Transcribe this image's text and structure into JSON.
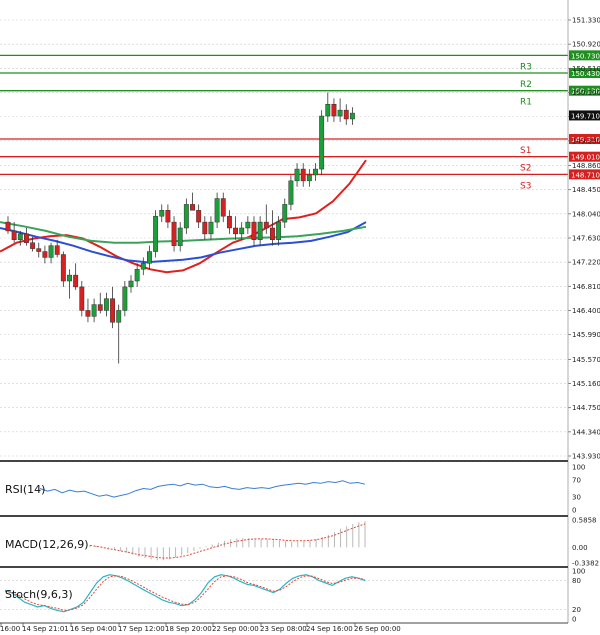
{
  "chart_data": {
    "type": "candlestick",
    "instrument_timeframe": "H4",
    "price_axis": {
      "ylim": [
        143.7,
        151.6
      ],
      "ticks": [
        "151.330",
        "150.920",
        "150.510",
        "150.100",
        "149.690",
        "149.280",
        "148.860",
        "148.450",
        "148.040",
        "147.630",
        "147.220",
        "146.810",
        "146.400",
        "145.990",
        "145.570",
        "145.160",
        "144.750",
        "144.340",
        "143.930"
      ]
    },
    "time_labels": [
      "16:00",
      "14 Sep 21:01",
      "16 Sep 04:00",
      "17 Sep 12:00",
      "18 Sep 20:00",
      "22 Sep 00:00",
      "23 Sep 08:00",
      "24 Sep 16:00",
      "26 Sep 00:00"
    ],
    "levels": [
      {
        "name": "R3",
        "value": 150.73,
        "label": "150.730",
        "type": "resistance"
      },
      {
        "name": "R2",
        "value": 150.43,
        "label": "150.430",
        "type": "resistance"
      },
      {
        "name": "R1",
        "value": 150.13,
        "label": "150.130",
        "type": "resistance"
      },
      {
        "name": "S1",
        "value": 149.31,
        "label": "149.310",
        "type": "support"
      },
      {
        "name": "S2",
        "value": 149.01,
        "label": "149.010",
        "type": "support"
      },
      {
        "name": "S3",
        "value": 148.71,
        "label": "148.710",
        "type": "support"
      }
    ],
    "current_price": {
      "value": 149.71,
      "label": "149.710"
    },
    "candles": [
      [
        147.9,
        148.0,
        147.7,
        147.75
      ],
      [
        147.75,
        147.9,
        147.55,
        147.6
      ],
      [
        147.6,
        147.75,
        147.5,
        147.7
      ],
      [
        147.7,
        147.8,
        147.5,
        147.55
      ],
      [
        147.55,
        147.65,
        147.4,
        147.45
      ],
      [
        147.45,
        147.55,
        147.3,
        147.4
      ],
      [
        147.4,
        147.5,
        147.2,
        147.3
      ],
      [
        147.3,
        147.55,
        147.2,
        147.5
      ],
      [
        147.5,
        147.6,
        147.3,
        147.35
      ],
      [
        147.35,
        147.4,
        146.8,
        146.9
      ],
      [
        146.9,
        147.1,
        146.6,
        147.0
      ],
      [
        147.0,
        147.2,
        146.75,
        146.8
      ],
      [
        146.8,
        146.9,
        146.3,
        146.4
      ],
      [
        146.4,
        146.6,
        146.2,
        146.3
      ],
      [
        146.3,
        146.6,
        146.2,
        146.5
      ],
      [
        146.5,
        146.7,
        146.35,
        146.4
      ],
      [
        146.4,
        146.7,
        146.3,
        146.6
      ],
      [
        146.6,
        146.8,
        146.1,
        146.2
      ],
      [
        146.2,
        146.5,
        145.5,
        146.4
      ],
      [
        146.4,
        146.9,
        146.3,
        146.8
      ],
      [
        146.8,
        147.0,
        146.7,
        146.9
      ],
      [
        146.9,
        147.2,
        146.8,
        147.1
      ],
      [
        147.1,
        147.3,
        147.0,
        147.2
      ],
      [
        147.2,
        147.5,
        147.1,
        147.4
      ],
      [
        147.4,
        148.1,
        147.3,
        148.0
      ],
      [
        148.0,
        148.2,
        147.9,
        148.1
      ],
      [
        148.1,
        148.2,
        147.8,
        147.9
      ],
      [
        147.9,
        148.0,
        147.4,
        147.5
      ],
      [
        147.5,
        147.9,
        147.4,
        147.8
      ],
      [
        147.8,
        148.3,
        147.7,
        148.2
      ],
      [
        148.2,
        148.4,
        148.1,
        148.1
      ],
      [
        148.1,
        148.2,
        147.8,
        147.9
      ],
      [
        147.9,
        148.0,
        147.6,
        147.7
      ],
      [
        147.7,
        148.0,
        147.6,
        147.9
      ],
      [
        147.9,
        148.4,
        147.8,
        148.3
      ],
      [
        148.3,
        148.4,
        147.9,
        148.0
      ],
      [
        148.0,
        148.1,
        147.7,
        147.8
      ],
      [
        147.8,
        148.0,
        147.6,
        147.7
      ],
      [
        147.7,
        147.9,
        147.6,
        147.8
      ],
      [
        147.8,
        148.0,
        147.7,
        147.9
      ],
      [
        147.9,
        148.0,
        147.5,
        147.6
      ],
      [
        147.6,
        148.0,
        147.5,
        147.9
      ],
      [
        147.9,
        148.2,
        147.7,
        147.8
      ],
      [
        147.8,
        148.1,
        147.5,
        147.6
      ],
      [
        147.6,
        148.0,
        147.5,
        147.9
      ],
      [
        147.9,
        148.3,
        147.8,
        148.2
      ],
      [
        148.2,
        148.7,
        148.1,
        148.6
      ],
      [
        148.6,
        148.9,
        148.5,
        148.8
      ],
      [
        148.8,
        148.9,
        148.5,
        148.6
      ],
      [
        148.6,
        148.8,
        148.5,
        148.7
      ],
      [
        148.7,
        148.9,
        148.6,
        148.8
      ],
      [
        148.8,
        149.8,
        148.7,
        149.7
      ],
      [
        149.7,
        150.1,
        149.6,
        149.9
      ],
      [
        149.9,
        150.0,
        149.6,
        149.7
      ],
      [
        149.7,
        150.0,
        149.6,
        149.8
      ],
      [
        149.8,
        149.9,
        149.55,
        149.65
      ],
      [
        149.65,
        149.85,
        149.55,
        149.75
      ]
    ],
    "moving_averages": [
      {
        "name": "MA fast",
        "color": "#e0201e",
        "values": [
          147.4,
          147.55,
          147.62,
          147.66,
          147.68,
          147.62,
          147.48,
          147.32,
          147.2,
          147.1,
          147.05,
          147.08,
          147.2,
          147.38,
          147.55,
          147.65,
          147.8,
          147.95,
          147.98,
          148.05,
          148.25,
          148.55,
          148.95
        ]
      },
      {
        "name": "MA medium",
        "color": "#2a4fd6",
        "values": [
          147.8,
          147.73,
          147.65,
          147.58,
          147.5,
          147.4,
          147.32,
          147.25,
          147.22,
          147.24,
          147.26,
          147.3,
          147.38,
          147.44,
          147.5,
          147.53,
          147.55,
          147.58,
          147.65,
          147.73,
          147.9
        ]
      },
      {
        "name": "MA slow",
        "color": "#3aa35a",
        "values": [
          147.9,
          147.83,
          147.75,
          147.65,
          147.58,
          147.55,
          147.55,
          147.57,
          147.58,
          147.6,
          147.62,
          147.63,
          147.64,
          147.66,
          147.7,
          147.75,
          147.82
        ]
      }
    ],
    "rsi": {
      "label": "RSI(14)",
      "ticks": [
        "100",
        "70",
        "30",
        "0"
      ],
      "color": "#3a7dd6",
      "values": [
        50,
        44,
        48,
        40,
        46,
        42,
        44,
        38,
        32,
        35,
        30,
        34,
        38,
        45,
        50,
        48,
        55,
        58,
        60,
        56,
        62,
        58,
        60,
        54,
        52,
        55,
        50,
        48,
        52,
        50,
        52,
        50,
        55,
        58,
        60,
        62,
        60,
        64,
        62,
        66,
        64,
        68,
        62,
        64,
        60
      ]
    },
    "macd": {
      "label": "MACD(12,26,9)",
      "ticks": [
        "0.5858",
        "0.00",
        "-0.3382"
      ],
      "signal_color": "#e04a3a",
      "histogram": [
        0.05,
        0.03,
        0.01,
        -0.02,
        -0.05,
        -0.08,
        -0.12,
        -0.16,
        -0.2,
        -0.23,
        -0.26,
        -0.28,
        -0.28,
        -0.26,
        -0.22,
        -0.18,
        -0.13,
        -0.08,
        -0.03,
        0.02,
        0.06,
        0.1,
        0.14,
        0.17,
        0.19,
        0.2,
        0.2,
        0.19,
        0.18,
        0.17,
        0.15,
        0.14,
        0.13,
        0.12,
        0.12,
        0.13,
        0.15,
        0.18,
        0.22,
        0.27,
        0.33,
        0.4,
        0.45,
        0.5,
        0.54,
        0.56
      ],
      "signal": [
        0.04,
        0.02,
        0.0,
        -0.03,
        -0.05,
        -0.08,
        -0.1,
        -0.13,
        -0.16,
        -0.18,
        -0.2,
        -0.22,
        -0.23,
        -0.23,
        -0.22,
        -0.2,
        -0.17,
        -0.13,
        -0.09,
        -0.05,
        -0.01,
        0.03,
        0.07,
        0.1,
        0.13,
        0.15,
        0.17,
        0.18,
        0.18,
        0.18,
        0.17,
        0.16,
        0.15,
        0.14,
        0.14,
        0.14,
        0.15,
        0.16,
        0.19,
        0.22,
        0.26,
        0.31,
        0.36,
        0.41,
        0.46,
        0.5
      ]
    },
    "stochastic": {
      "label": "Stoch(9,6,3)",
      "ticks": [
        "100",
        "80",
        "20",
        "0"
      ],
      "main_color": "#2bb5c8",
      "signal_color": "#e04a3a",
      "main": [
        60,
        55,
        45,
        35,
        30,
        25,
        28,
        22,
        18,
        15,
        20,
        25,
        35,
        55,
        75,
        88,
        92,
        90,
        85,
        78,
        70,
        62,
        55,
        48,
        40,
        35,
        32,
        28,
        30,
        40,
        55,
        75,
        88,
        92,
        90,
        85,
        78,
        72,
        70,
        65,
        60,
        55,
        62,
        75,
        85,
        90,
        92,
        88,
        80,
        75,
        70,
        78,
        85,
        88,
        85,
        80
      ],
      "signal": [
        58,
        55,
        50,
        42,
        35,
        30,
        28,
        25,
        22,
        18,
        19,
        23,
        30,
        45,
        62,
        78,
        88,
        90,
        88,
        82,
        75,
        68,
        60,
        53,
        46,
        40,
        35,
        31,
        30,
        35,
        47,
        62,
        78,
        88,
        90,
        88,
        83,
        76,
        72,
        68,
        63,
        58,
        60,
        68,
        78,
        86,
        90,
        89,
        84,
        78,
        74,
        76,
        81,
        85,
        85,
        82
      ]
    }
  }
}
